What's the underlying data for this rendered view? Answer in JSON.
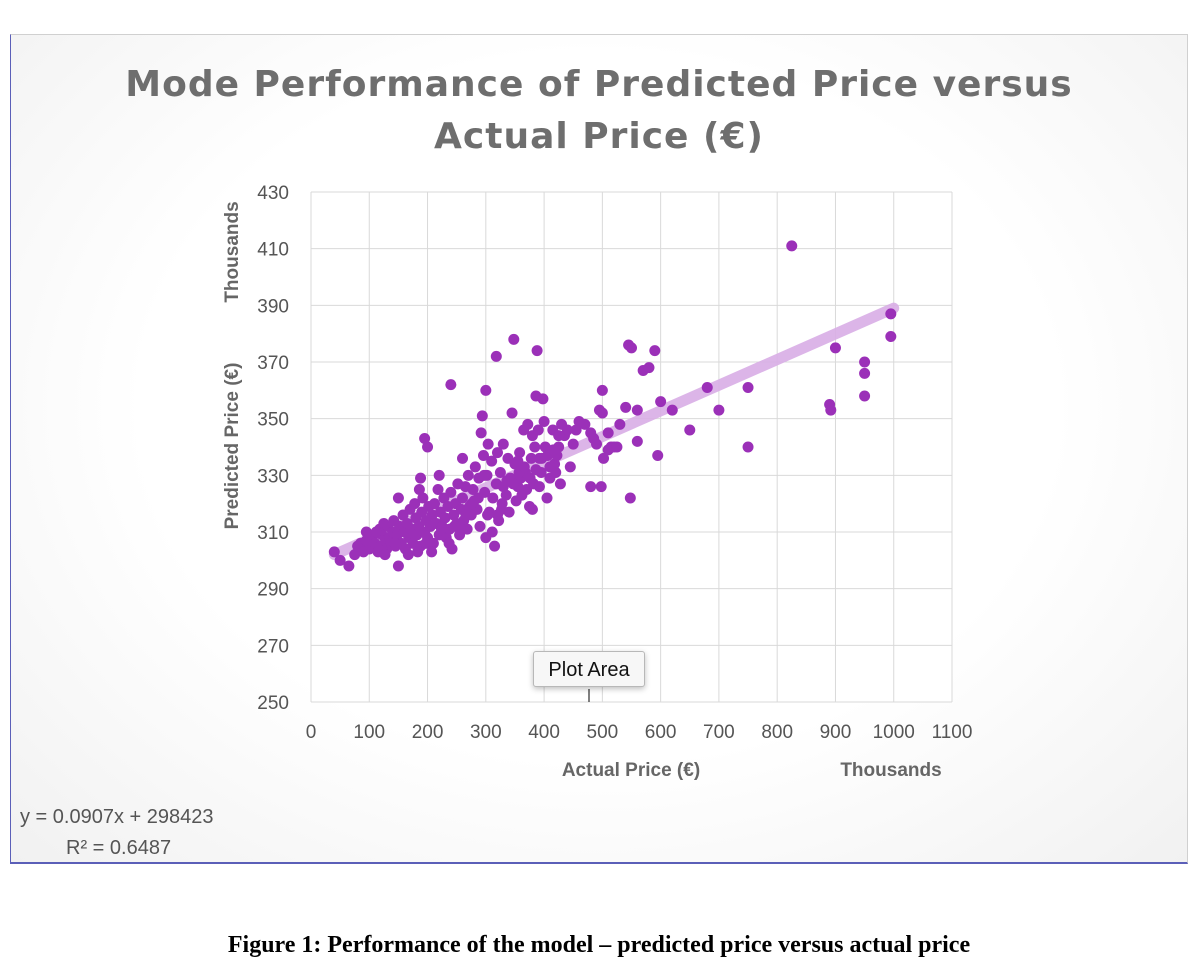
{
  "chart_data": {
    "type": "scatter",
    "title_line1": "Mode Performance of Predicted Price versus",
    "title_line2": "Actual Price (€)",
    "xlabel": "Actual Price (€)",
    "ylabel": "Predicted Price (€)",
    "x_units_label": "Thousands",
    "y_units_label": "Thousands",
    "xlim": [
      0,
      1100
    ],
    "ylim": [
      250,
      430
    ],
    "x_ticks": [
      "0",
      "100",
      "200",
      "300",
      "400",
      "500",
      "600",
      "700",
      "800",
      "900",
      "1000",
      "1100"
    ],
    "y_ticks": [
      "250",
      "270",
      "290",
      "310",
      "330",
      "350",
      "370",
      "390",
      "410",
      "430"
    ],
    "grid": true,
    "point_color": "#9b30b8",
    "trendline_color": "#d9aee6",
    "trendline": {
      "x": [
        40,
        1000
      ],
      "y": [
        302,
        389
      ]
    },
    "trendline_equation": "y = 0.0907x + 298423",
    "r_squared": "R² = 0.6487",
    "points": [
      [
        50,
        300
      ],
      [
        65,
        298
      ],
      [
        75,
        302
      ],
      [
        80,
        305
      ],
      [
        85,
        306
      ],
      [
        90,
        303
      ],
      [
        95,
        310
      ],
      [
        100,
        304
      ],
      [
        105,
        308
      ],
      [
        110,
        306
      ],
      [
        115,
        303
      ],
      [
        118,
        311
      ],
      [
        120,
        305
      ],
      [
        122,
        309
      ],
      [
        125,
        313
      ],
      [
        128,
        307
      ],
      [
        130,
        304
      ],
      [
        132,
        312
      ],
      [
        135,
        308
      ],
      [
        138,
        306
      ],
      [
        140,
        310
      ],
      [
        142,
        314
      ],
      [
        145,
        305
      ],
      [
        148,
        309
      ],
      [
        150,
        298
      ],
      [
        150,
        322
      ],
      [
        152,
        312
      ],
      [
        155,
        306
      ],
      [
        158,
        316
      ],
      [
        160,
        310
      ],
      [
        162,
        304
      ],
      [
        165,
        313
      ],
      [
        168,
        308
      ],
      [
        170,
        318
      ],
      [
        172,
        311
      ],
      [
        175,
        306
      ],
      [
        178,
        320
      ],
      [
        180,
        315
      ],
      [
        182,
        309
      ],
      [
        185,
        312
      ],
      [
        188,
        305
      ],
      [
        190,
        317
      ],
      [
        192,
        322
      ],
      [
        195,
        310
      ],
      [
        198,
        314
      ],
      [
        200,
        308
      ],
      [
        200,
        340
      ],
      [
        202,
        319
      ],
      [
        205,
        312
      ],
      [
        208,
        316
      ],
      [
        210,
        306
      ],
      [
        212,
        320
      ],
      [
        215,
        313
      ],
      [
        218,
        325
      ],
      [
        220,
        309
      ],
      [
        222,
        317
      ],
      [
        225,
        312
      ],
      [
        228,
        322
      ],
      [
        230,
        315
      ],
      [
        232,
        308
      ],
      [
        235,
        319
      ],
      [
        238,
        311
      ],
      [
        240,
        324
      ],
      [
        242,
        304
      ],
      [
        245,
        316
      ],
      [
        248,
        320
      ],
      [
        250,
        313
      ],
      [
        252,
        327
      ],
      [
        255,
        309
      ],
      [
        258,
        318
      ],
      [
        260,
        322
      ],
      [
        262,
        314
      ],
      [
        265,
        326
      ],
      [
        268,
        311
      ],
      [
        270,
        330
      ],
      [
        272,
        319
      ],
      [
        275,
        316
      ],
      [
        278,
        325
      ],
      [
        280,
        321
      ],
      [
        282,
        333
      ],
      [
        285,
        318
      ],
      [
        288,
        329
      ],
      [
        290,
        312
      ],
      [
        292,
        345
      ],
      [
        294,
        351
      ],
      [
        296,
        337
      ],
      [
        298,
        324
      ],
      [
        300,
        308
      ],
      [
        302,
        330
      ],
      [
        304,
        341
      ],
      [
        306,
        317
      ],
      [
        310,
        335
      ],
      [
        312,
        322
      ],
      [
        315,
        305
      ],
      [
        318,
        327
      ],
      [
        320,
        338
      ],
      [
        322,
        314
      ],
      [
        325,
        331
      ],
      [
        328,
        320
      ],
      [
        330,
        326
      ],
      [
        335,
        323
      ],
      [
        338,
        336
      ],
      [
        340,
        317
      ],
      [
        342,
        329
      ],
      [
        345,
        352
      ],
      [
        348,
        378
      ],
      [
        350,
        334
      ],
      [
        352,
        321
      ],
      [
        355,
        326
      ],
      [
        358,
        338
      ],
      [
        360,
        329
      ],
      [
        362,
        323
      ],
      [
        365,
        346
      ],
      [
        368,
        331
      ],
      [
        370,
        325
      ],
      [
        372,
        348
      ],
      [
        375,
        319
      ],
      [
        378,
        336
      ],
      [
        380,
        344
      ],
      [
        382,
        327
      ],
      [
        384,
        340
      ],
      [
        386,
        358
      ],
      [
        388,
        374
      ],
      [
        390,
        346
      ],
      [
        392,
        336
      ],
      [
        395,
        331
      ],
      [
        398,
        357
      ],
      [
        400,
        349
      ],
      [
        402,
        340
      ],
      [
        405,
        322
      ],
      [
        410,
        329
      ],
      [
        415,
        346
      ],
      [
        418,
        334
      ],
      [
        420,
        331
      ],
      [
        422,
        337
      ],
      [
        425,
        340
      ],
      [
        428,
        327
      ],
      [
        430,
        348
      ],
      [
        435,
        344
      ],
      [
        440,
        346
      ],
      [
        445,
        333
      ],
      [
        450,
        341
      ],
      [
        455,
        346
      ],
      [
        470,
        348
      ],
      [
        480,
        345
      ],
      [
        485,
        343
      ],
      [
        490,
        341
      ],
      [
        495,
        353
      ],
      [
        498,
        326
      ],
      [
        500,
        360
      ],
      [
        502,
        336
      ],
      [
        510,
        345
      ],
      [
        515,
        340
      ],
      [
        520,
        340
      ],
      [
        530,
        348
      ],
      [
        540,
        354
      ],
      [
        545,
        376
      ],
      [
        548,
        322
      ],
      [
        550,
        375
      ],
      [
        560,
        342
      ],
      [
        570,
        367
      ],
      [
        580,
        368
      ],
      [
        590,
        374
      ],
      [
        595,
        337
      ],
      [
        600,
        356
      ],
      [
        620,
        353
      ],
      [
        650,
        346
      ],
      [
        680,
        361
      ],
      [
        700,
        353
      ],
      [
        750,
        361
      ],
      [
        750,
        340
      ],
      [
        825,
        411
      ],
      [
        890,
        355
      ],
      [
        892,
        353
      ],
      [
        900,
        375
      ],
      [
        950,
        370
      ],
      [
        950,
        366
      ],
      [
        950,
        358
      ],
      [
        995,
        387
      ],
      [
        995,
        379
      ],
      [
        40,
        303
      ],
      [
        95,
        307
      ],
      [
        112,
        310
      ],
      [
        127,
        302
      ],
      [
        144,
        306
      ],
      [
        167,
        302
      ],
      [
        183,
        303
      ],
      [
        197,
        306
      ],
      [
        207,
        303
      ],
      [
        224,
        311
      ],
      [
        237,
        306
      ],
      [
        246,
        312
      ],
      [
        257,
        311
      ],
      [
        266,
        316
      ],
      [
        276,
        320
      ],
      [
        287,
        322
      ],
      [
        297,
        330
      ],
      [
        303,
        316
      ],
      [
        311,
        310
      ],
      [
        320,
        316
      ],
      [
        327,
        318
      ],
      [
        336,
        328
      ],
      [
        347,
        327
      ],
      [
        357,
        331
      ],
      [
        366,
        333
      ],
      [
        376,
        329
      ],
      [
        386,
        332
      ],
      [
        396,
        336
      ],
      [
        406,
        337
      ],
      [
        416,
        339
      ],
      [
        188,
        329
      ],
      [
        186,
        325
      ],
      [
        195,
        343
      ],
      [
        220,
        330
      ],
      [
        240,
        362
      ],
      [
        260,
        336
      ],
      [
        300,
        360
      ],
      [
        318,
        372
      ],
      [
        330,
        341
      ],
      [
        355,
        335
      ],
      [
        380,
        318
      ],
      [
        392,
        326
      ],
      [
        410,
        333
      ],
      [
        425,
        344
      ],
      [
        460,
        349
      ],
      [
        480,
        326
      ],
      [
        500,
        352
      ],
      [
        510,
        339
      ],
      [
        525,
        340
      ],
      [
        560,
        353
      ]
    ]
  },
  "caption": "Figure 1: Performance of the model – predicted price versus actual price",
  "tooltip_label": "Plot Area"
}
